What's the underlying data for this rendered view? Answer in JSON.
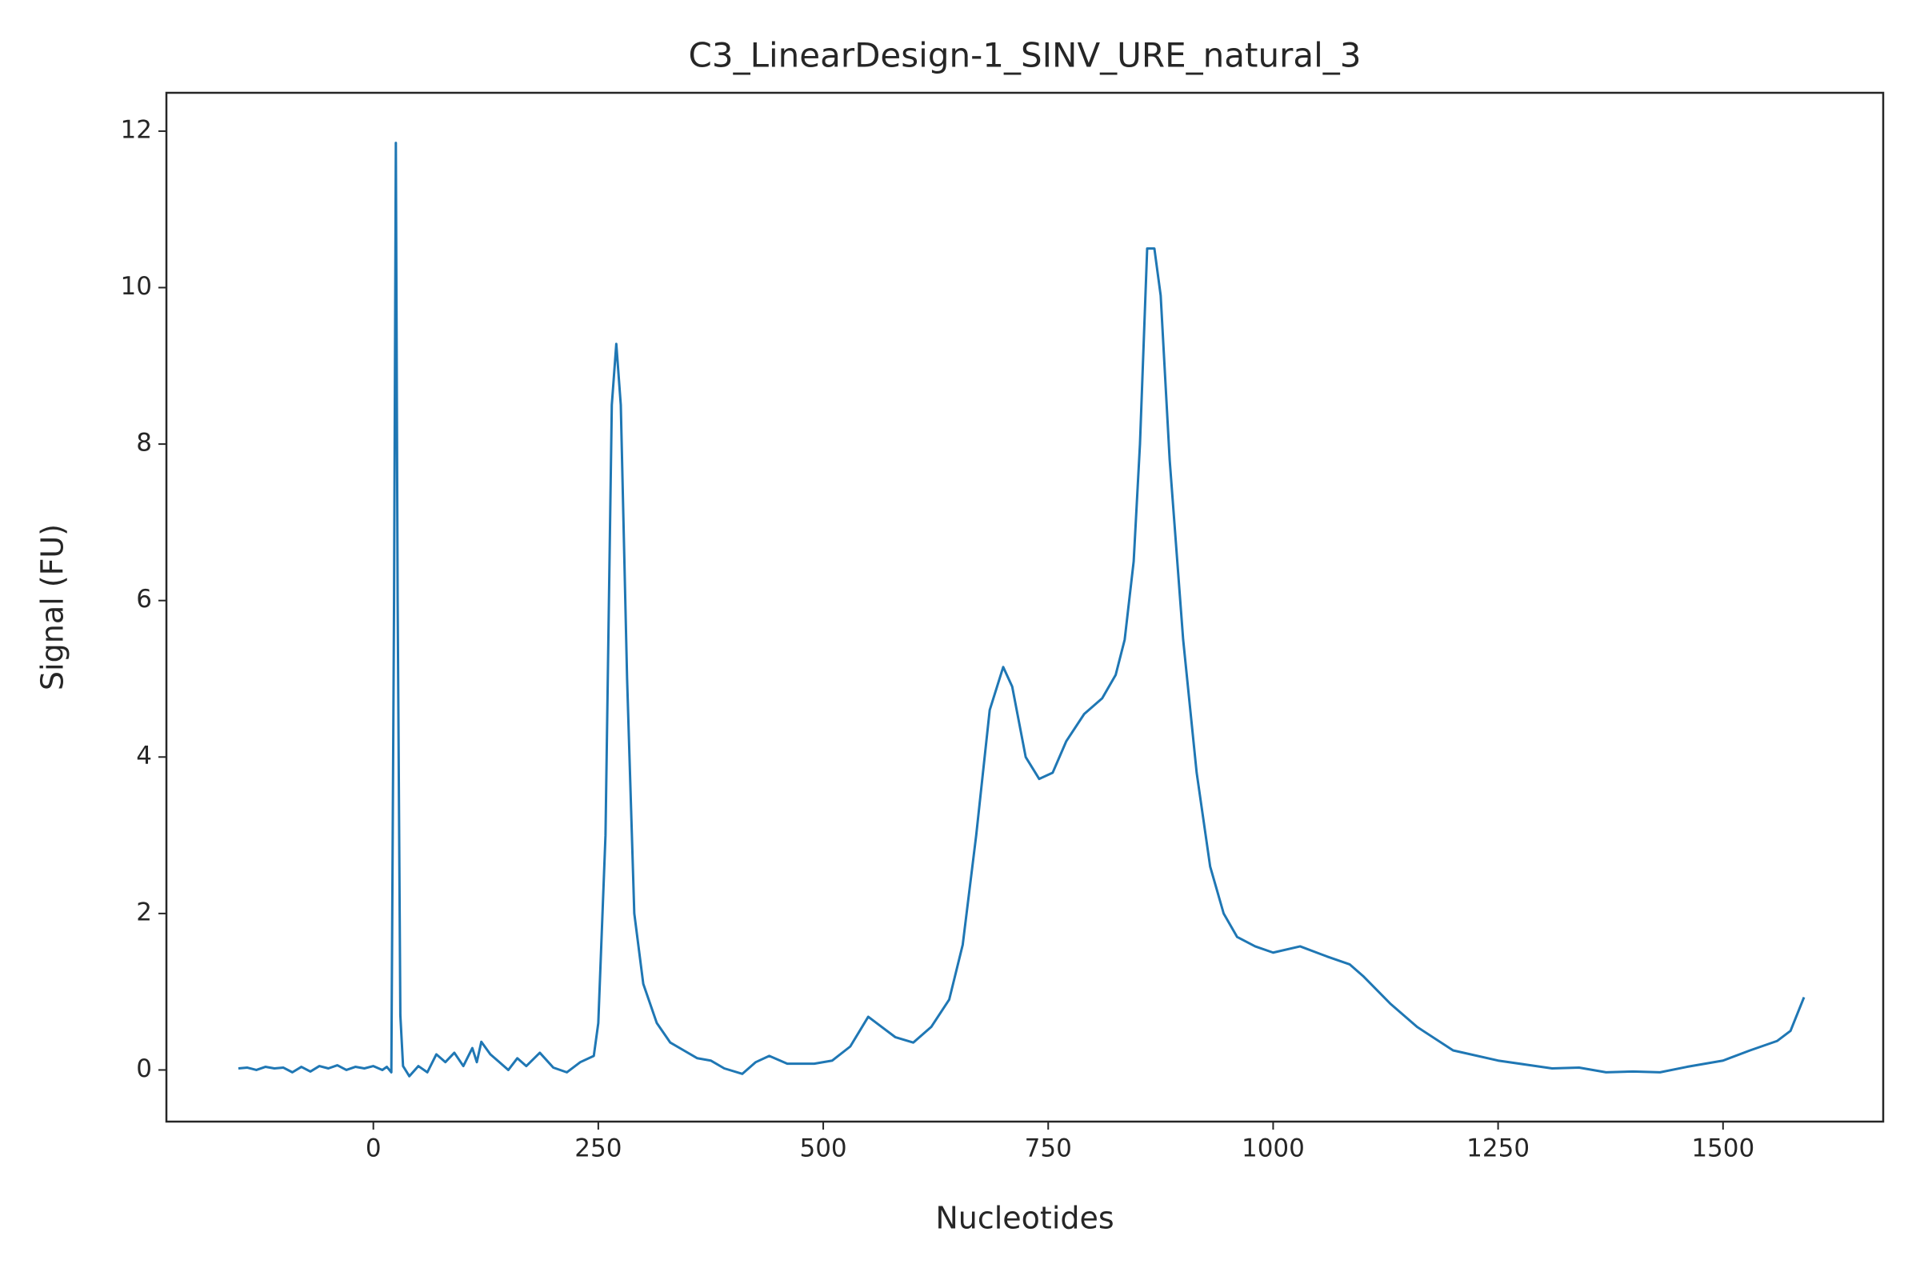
{
  "chart_data": {
    "type": "line",
    "title": "C3_LinearDesign-1_SINV_URE_natural_3",
    "x_label": "Nucleotides",
    "y_label": "Signal (FU)",
    "xlim": [
      -230,
      1678
    ],
    "ylim": [
      -0.66,
      12.49
    ],
    "xticks": [
      0,
      250,
      500,
      750,
      1000,
      1250,
      1500
    ],
    "yticks": [
      0,
      2,
      4,
      6,
      8,
      10,
      12
    ],
    "color": "#1f77b4",
    "x": [
      -150,
      -140,
      -130,
      -120,
      -110,
      -100,
      -90,
      -80,
      -70,
      -60,
      -50,
      -40,
      -30,
      -20,
      -10,
      0,
      10,
      15,
      20,
      23,
      25,
      27,
      30,
      33,
      40,
      50,
      60,
      70,
      80,
      90,
      100,
      110,
      115,
      120,
      130,
      140,
      150,
      160,
      170,
      185,
      200,
      215,
      230,
      245,
      250,
      258,
      265,
      270,
      275,
      282,
      290,
      300,
      315,
      330,
      345,
      360,
      375,
      390,
      410,
      425,
      440,
      460,
      490,
      510,
      530,
      550,
      565,
      580,
      600,
      620,
      640,
      655,
      670,
      685,
      700,
      710,
      725,
      740,
      755,
      770,
      790,
      810,
      825,
      835,
      845,
      852,
      860,
      868,
      875,
      885,
      900,
      915,
      930,
      945,
      960,
      980,
      1000,
      1030,
      1060,
      1085,
      1100,
      1130,
      1160,
      1200,
      1250,
      1280,
      1310,
      1340,
      1370,
      1400,
      1430,
      1460,
      1500,
      1530,
      1560,
      1575,
      1590
    ],
    "values": [
      0.02,
      0.03,
      0.0,
      0.04,
      0.02,
      0.03,
      -0.03,
      0.04,
      -0.02,
      0.05,
      0.02,
      0.06,
      0.0,
      0.04,
      0.02,
      0.05,
      0.0,
      0.04,
      -0.03,
      6.0,
      11.85,
      6.0,
      0.7,
      0.05,
      -0.08,
      0.05,
      -0.03,
      0.2,
      0.1,
      0.22,
      0.05,
      0.28,
      0.1,
      0.36,
      0.2,
      0.1,
      0.0,
      0.15,
      0.05,
      0.22,
      0.03,
      -0.03,
      0.1,
      0.18,
      0.6,
      3.0,
      8.5,
      9.28,
      8.5,
      5.0,
      2.0,
      1.1,
      0.6,
      0.35,
      0.25,
      0.15,
      0.12,
      0.02,
      -0.05,
      0.1,
      0.18,
      0.08,
      0.08,
      0.12,
      0.3,
      0.68,
      0.55,
      0.42,
      0.35,
      0.55,
      0.9,
      1.6,
      3.0,
      4.6,
      5.15,
      4.9,
      4.0,
      3.72,
      3.8,
      4.2,
      4.55,
      4.75,
      5.05,
      5.5,
      6.5,
      8.0,
      10.5,
      10.5,
      9.9,
      7.8,
      5.5,
      3.8,
      2.6,
      2.0,
      1.7,
      1.58,
      1.5,
      1.58,
      1.45,
      1.35,
      1.2,
      0.85,
      0.55,
      0.25,
      0.12,
      0.07,
      0.02,
      0.03,
      -0.03,
      -0.02,
      -0.03,
      0.04,
      0.12,
      0.25,
      0.37,
      0.5,
      0.93
    ]
  }
}
